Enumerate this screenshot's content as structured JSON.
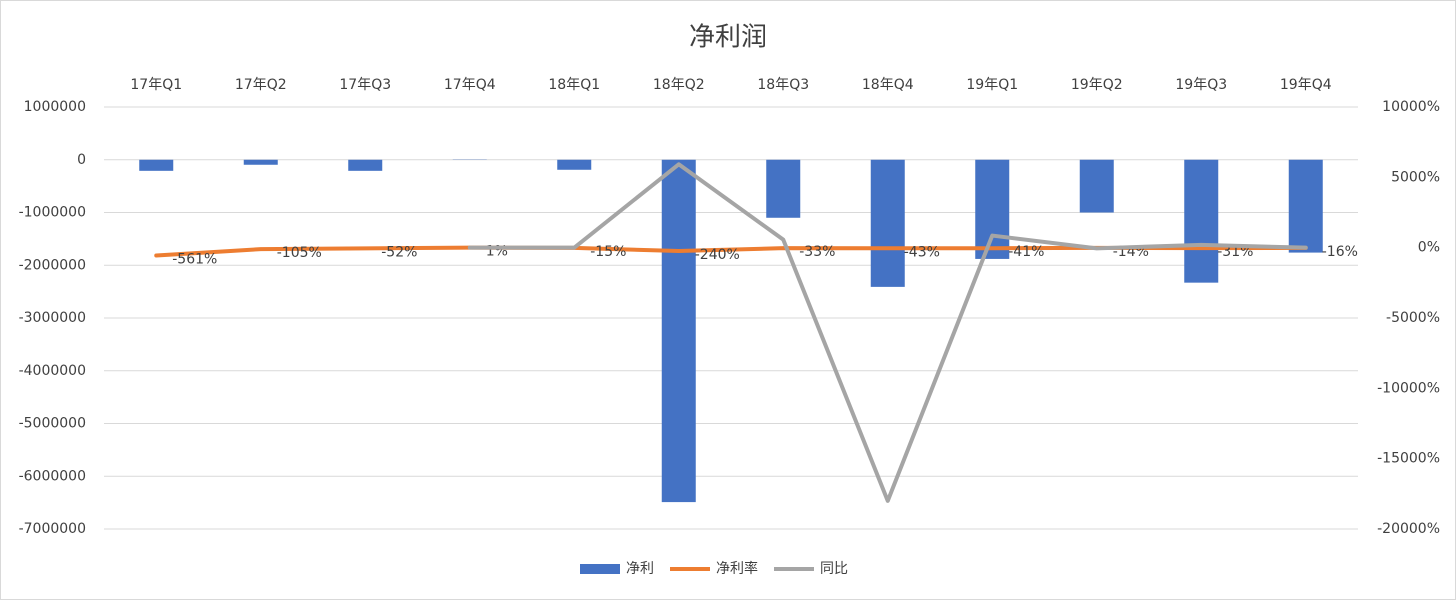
{
  "chart_data": {
    "type": "bar",
    "title": "净利润",
    "categories": [
      "17年Q1",
      "17年Q2",
      "17年Q3",
      "17年Q4",
      "18年Q1",
      "18年Q2",
      "18年Q3",
      "18年Q4",
      "19年Q1",
      "19年Q2",
      "19年Q3",
      "19年Q4"
    ],
    "series": [
      {
        "name": "净利",
        "type": "bar",
        "color": "#4472c4",
        "values": [
          -210000,
          -95000,
          -210000,
          5000,
          -190000,
          -6490000,
          -1100000,
          -2410000,
          -1880000,
          -1000000,
          -2330000,
          -1760000
        ]
      },
      {
        "name": "净利率",
        "type": "line",
        "axis": "y2",
        "color": "#ed7d31",
        "values": [
          -561,
          -105,
          -52,
          1,
          -15,
          -240,
          -33,
          -43,
          -41,
          -14,
          -31,
          -16
        ],
        "value_labels": [
          "-561%",
          "-105%",
          "-52%",
          "1%",
          "-15%",
          "-240%",
          "-33%",
          "-43%",
          "-41%",
          "-14%",
          "-31%",
          "-16%"
        ]
      },
      {
        "name": "同比",
        "type": "line",
        "axis": "y2",
        "color": "#a5a5a5",
        "values": [
          null,
          null,
          null,
          0,
          0,
          5930,
          570,
          -18000,
          860,
          -50,
          200,
          0
        ]
      }
    ],
    "ylim": [
      -7000000,
      1000000
    ],
    "yticks": [
      1000000,
      0,
      -1000000,
      -2000000,
      -3000000,
      -4000000,
      -5000000,
      -6000000,
      -7000000
    ],
    "y2lim": [
      -20000,
      10000
    ],
    "y2ticks": [
      {
        "value": 10000,
        "label": "10000%"
      },
      {
        "value": 5000,
        "label": "5000%"
      },
      {
        "value": 0,
        "label": "0%"
      },
      {
        "value": -5000,
        "label": "-5000%"
      },
      {
        "value": -10000,
        "label": "-10000%"
      },
      {
        "value": -15000,
        "label": "-15000%"
      },
      {
        "value": -20000,
        "label": "-20000%"
      }
    ],
    "grid": true,
    "legend": "bottom"
  }
}
